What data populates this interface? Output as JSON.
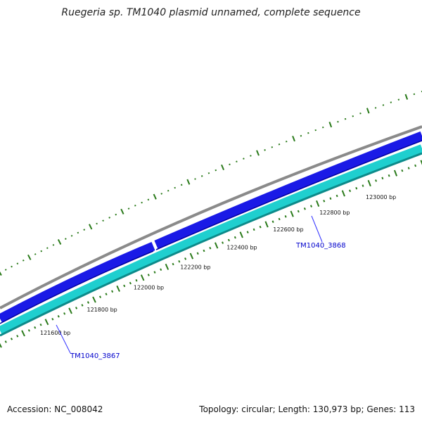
{
  "title": "Ruegeria sp. TM1040 plasmid unnamed, complete sequence",
  "footer": {
    "accession": "Accession: NC_008042",
    "summary": "Topology: circular; Length: 130,973 bp; Genes: 113"
  },
  "colors": {
    "backbone": "#8a8a8a",
    "forward_gene": "#1a1ae6",
    "reverse_gene": "#1fcfcf",
    "reverse_edge": "#0d8a8a",
    "tick": "#2a7a1a",
    "gene_label": "#0000cc"
  },
  "scale_labels": [
    "121600 bp",
    "121800 bp",
    "122000 bp",
    "122200 bp",
    "122400 bp",
    "122600 bp",
    "122800 bp",
    "123000 bp"
  ],
  "genes": [
    {
      "name": "TM1040_3867",
      "strand": "reverse"
    },
    {
      "name": "TM1040_3868",
      "strand": "reverse"
    }
  ]
}
